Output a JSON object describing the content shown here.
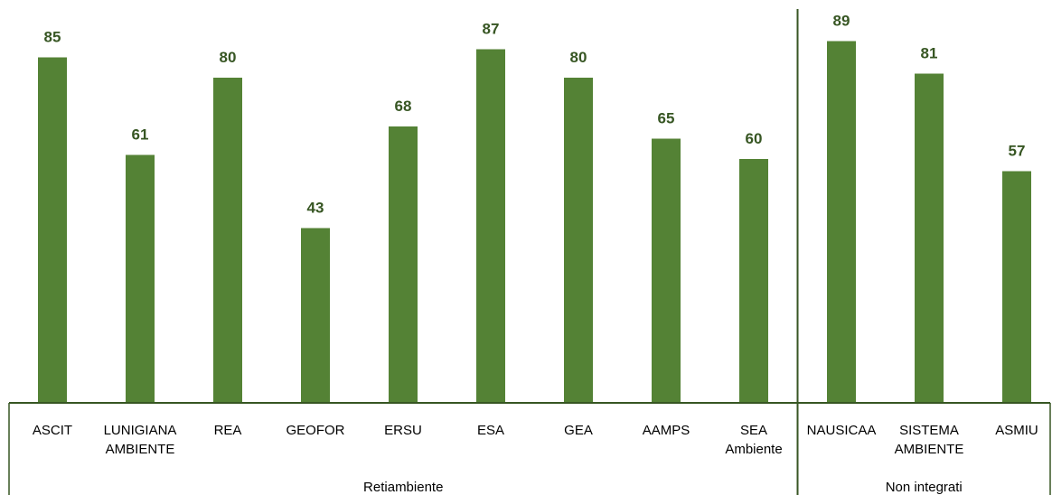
{
  "chart_data": {
    "type": "bar",
    "title": "",
    "xlabel": "",
    "ylabel": "",
    "ylim": [
      0,
      100
    ],
    "grid": false,
    "legend": "none",
    "bar_color": "#548235",
    "label_color": "#375623",
    "categories": [
      [
        "ASCIT"
      ],
      [
        "LUNIGIANA",
        "AMBIENTE"
      ],
      [
        "REA"
      ],
      [
        "GEOFOR"
      ],
      [
        "ERSU"
      ],
      [
        "ESA"
      ],
      [
        "GEA"
      ],
      [
        "AAMPS"
      ],
      [
        "SEA",
        "Ambiente"
      ],
      [
        "NAUSICAA"
      ],
      [
        "SISTEMA",
        "AMBIENTE"
      ],
      [
        "ASMIU"
      ]
    ],
    "values": [
      85,
      61,
      80,
      43,
      68,
      87,
      80,
      65,
      60,
      89,
      81,
      57
    ],
    "groups": [
      {
        "label": "Retiambiente",
        "start": 0,
        "end": 8
      },
      {
        "label": "Non integrati",
        "start": 9,
        "end": 11
      }
    ]
  }
}
